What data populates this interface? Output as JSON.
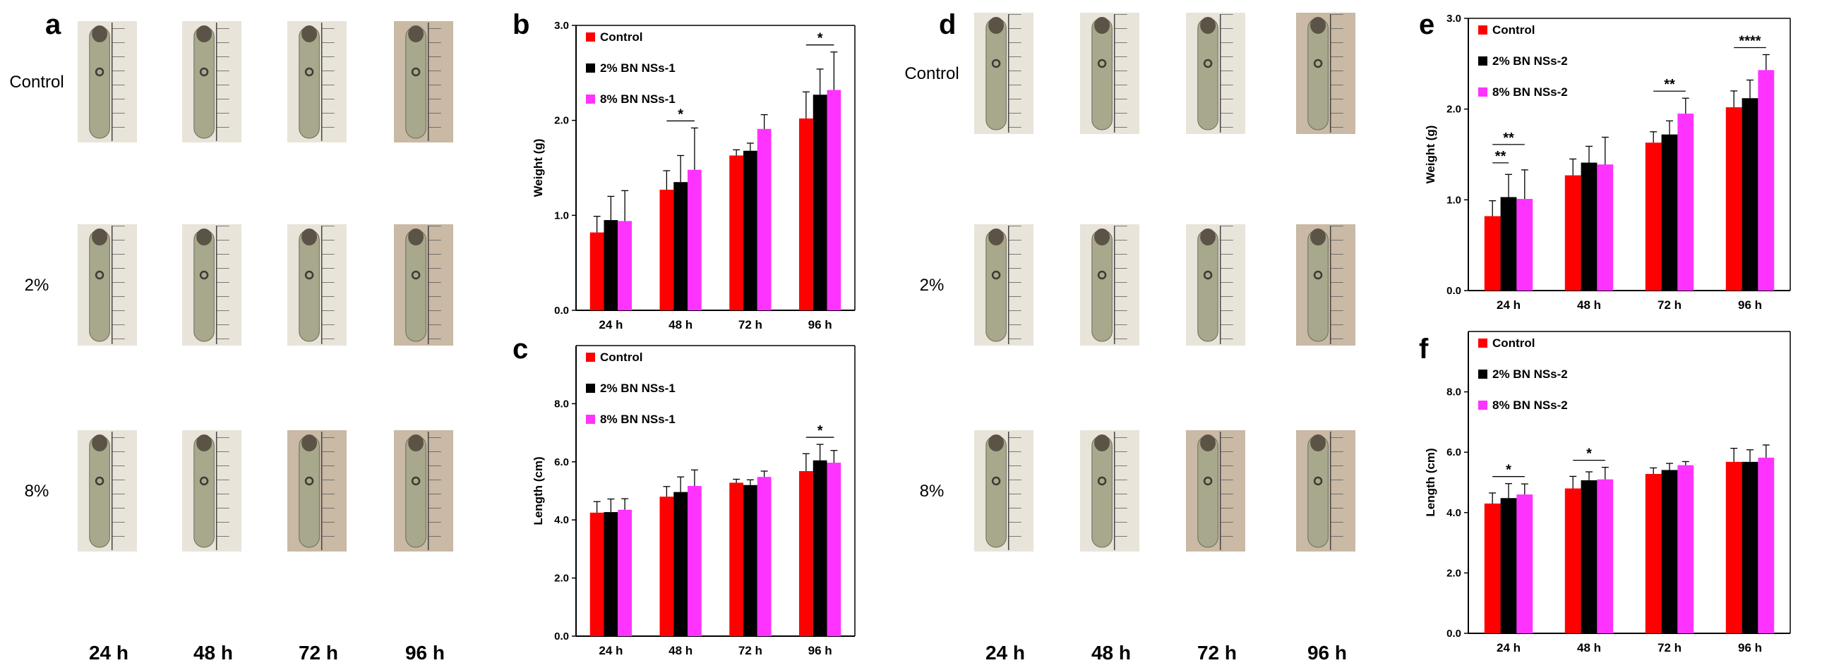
{
  "panel_letters": [
    "a",
    "b",
    "c",
    "d",
    "e",
    "f"
  ],
  "photo_panels": [
    {
      "letter": "a",
      "row_labels": [
        "Control",
        "2%",
        "8%"
      ],
      "column_labels": [
        "24 h",
        "48 h",
        "72 h",
        "96 h"
      ]
    },
    {
      "letter": "d",
      "row_labels": [
        "Control",
        "2%",
        "8%"
      ],
      "column_labels": [
        "24 h",
        "48 h",
        "72 h",
        "96 h"
      ]
    }
  ],
  "colors": {
    "control": "#ff0000",
    "two_percent": "#000000",
    "eight_percent": "#ff33ff",
    "photo_bg_light": "#e9e4da",
    "photo_bg_dark": "#c9b9a5",
    "larva": "#a8a88c"
  },
  "chart_data": [
    {
      "panel": "b",
      "type": "bar",
      "title": "",
      "xlabel": "",
      "ylabel": "Weight (g)",
      "ylim": [
        0,
        3.0
      ],
      "yticks": [
        "0.0",
        "1.0",
        "2.0",
        "3.0"
      ],
      "categories": [
        "24 h",
        "48 h",
        "72 h",
        "96 h"
      ],
      "series": [
        {
          "name": "Control",
          "values": [
            0.82,
            1.27,
            1.63,
            2.02
          ],
          "errors": [
            0.17,
            0.2,
            0.06,
            0.28
          ]
        },
        {
          "name": "2% BN NSs-1",
          "values": [
            0.95,
            1.35,
            1.68,
            2.27
          ],
          "errors": [
            0.25,
            0.28,
            0.08,
            0.27
          ]
        },
        {
          "name": "8% BN NSs-1",
          "values": [
            0.94,
            1.48,
            1.91,
            2.32
          ],
          "errors": [
            0.32,
            0.44,
            0.15,
            0.4
          ]
        }
      ],
      "significance": [
        {
          "category": "48 h",
          "label": "*"
        },
        {
          "category": "96 h",
          "label": "*"
        }
      ]
    },
    {
      "panel": "c",
      "type": "bar",
      "title": "",
      "xlabel": "",
      "ylabel": "Length (cm)",
      "ylim": [
        0,
        10.0
      ],
      "yticks": [
        "0.0",
        "2.0",
        "4.0",
        "6.0",
        "8.0"
      ],
      "categories": [
        "24 h",
        "48 h",
        "72 h",
        "96 h"
      ],
      "series": [
        {
          "name": "Control",
          "values": [
            4.25,
            4.8,
            5.28,
            5.68
          ],
          "errors": [
            0.38,
            0.35,
            0.12,
            0.6
          ]
        },
        {
          "name": "2% BN NSs-1",
          "values": [
            4.27,
            4.96,
            5.2,
            6.05
          ],
          "errors": [
            0.45,
            0.52,
            0.18,
            0.55
          ]
        },
        {
          "name": "8% BN NSs-1",
          "values": [
            4.35,
            5.17,
            5.48,
            5.97
          ],
          "errors": [
            0.38,
            0.55,
            0.2,
            0.42
          ]
        }
      ],
      "significance": [
        {
          "category": "96 h",
          "label": "*"
        }
      ]
    },
    {
      "panel": "e",
      "type": "bar",
      "title": "",
      "xlabel": "",
      "ylabel": "Weight (g)",
      "ylim": [
        0,
        3.0
      ],
      "yticks": [
        "0.0",
        "1.0",
        "2.0",
        "3.0"
      ],
      "categories": [
        "24 h",
        "48 h",
        "72 h",
        "96 h"
      ],
      "series": [
        {
          "name": "Control",
          "values": [
            0.82,
            1.27,
            1.63,
            2.02
          ],
          "errors": [
            0.17,
            0.18,
            0.12,
            0.18
          ]
        },
        {
          "name": "2% BN NSs-2",
          "values": [
            1.03,
            1.41,
            1.72,
            2.12
          ],
          "errors": [
            0.25,
            0.18,
            0.15,
            0.2
          ]
        },
        {
          "name": "8% BN NSs-2",
          "values": [
            1.01,
            1.39,
            1.95,
            2.43
          ],
          "errors": [
            0.32,
            0.3,
            0.17,
            0.17
          ]
        }
      ],
      "significance": [
        {
          "category": "24 h",
          "label": "**"
        },
        {
          "category": "24 h",
          "label": "**"
        },
        {
          "category": "72 h",
          "label": "**"
        },
        {
          "category": "96 h",
          "label": "****"
        }
      ]
    },
    {
      "panel": "f",
      "type": "bar",
      "title": "",
      "xlabel": "",
      "ylabel": "Length (cm)",
      "ylim": [
        0,
        10.0
      ],
      "yticks": [
        "0.0",
        "2.0",
        "4.0",
        "6.0",
        "8.0"
      ],
      "categories": [
        "24 h",
        "48 h",
        "72 h",
        "96 h"
      ],
      "series": [
        {
          "name": "Control",
          "values": [
            4.3,
            4.8,
            5.28,
            5.68
          ],
          "errors": [
            0.35,
            0.4,
            0.2,
            0.45
          ]
        },
        {
          "name": "2% BN NSs-2",
          "values": [
            4.48,
            5.07,
            5.41,
            5.68
          ],
          "errors": [
            0.48,
            0.28,
            0.22,
            0.4
          ]
        },
        {
          "name": "8% BN NSs-2",
          "values": [
            4.6,
            5.1,
            5.57,
            5.82
          ],
          "errors": [
            0.35,
            0.4,
            0.12,
            0.42
          ]
        }
      ],
      "significance": [
        {
          "category": "24 h",
          "label": "*"
        },
        {
          "category": "48 h",
          "label": "*"
        }
      ]
    }
  ]
}
